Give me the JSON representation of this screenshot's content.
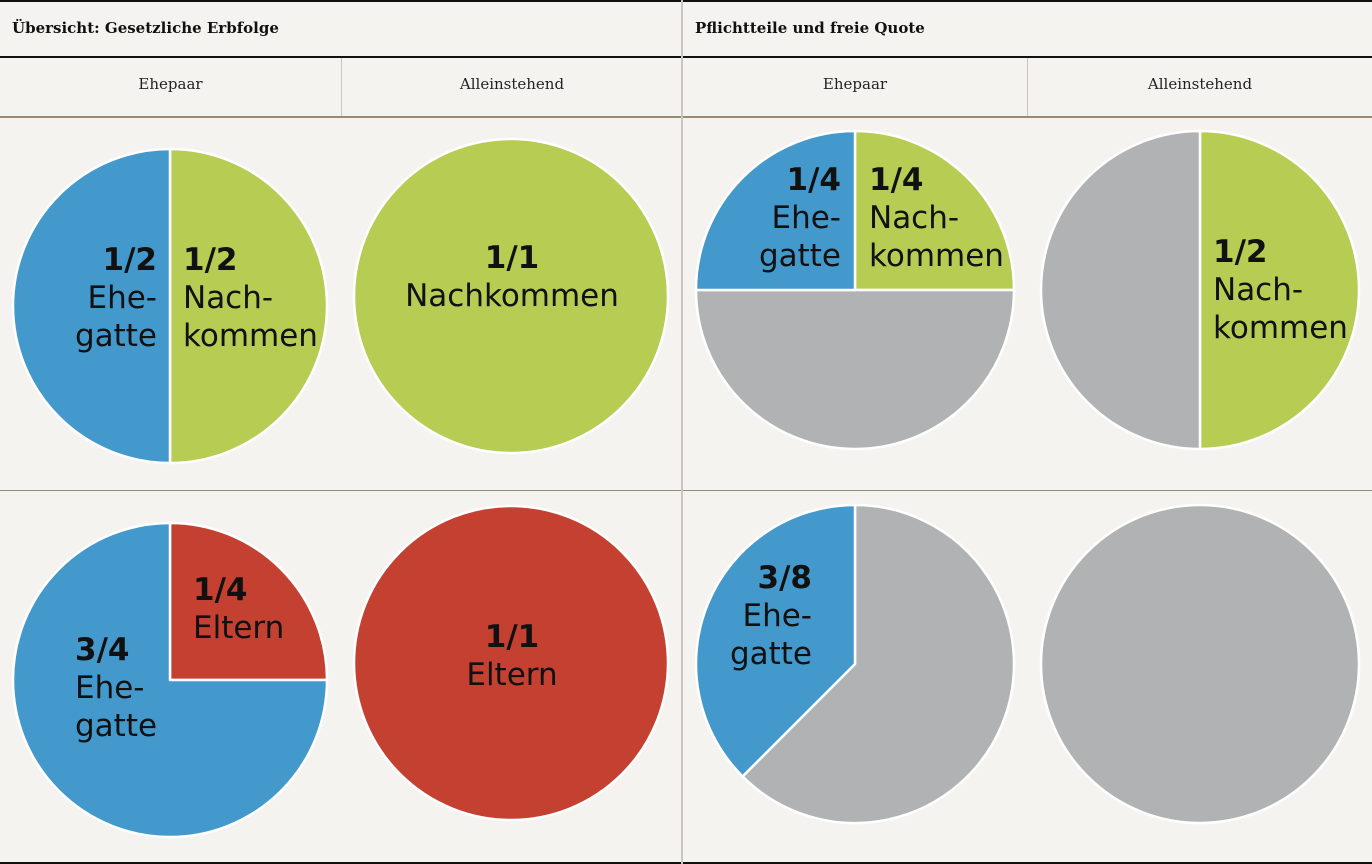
{
  "sections": [
    {
      "title": "Übersicht: Gesetzliche Erbfolge",
      "columns": [
        "Ehepaar",
        "Alleinstehend"
      ]
    },
    {
      "title": "Pflichtteile und freie Quote",
      "columns": [
        "Ehepaar",
        "Alleinstehend"
      ]
    }
  ],
  "colors": {
    "ehegatte": "#4499cc",
    "nachkommen": "#b6cc52",
    "eltern": "#c44132",
    "frei": "#b1b2b4"
  },
  "chart_data": [
    {
      "type": "pie",
      "section": "Übersicht: Gesetzliche Erbfolge",
      "column": "Ehepaar",
      "slices": [
        {
          "share": 0.5,
          "color_key": "nachkommen",
          "labels": [
            "1/2",
            "Nach-",
            "kommen"
          ]
        },
        {
          "share": 0.5,
          "color_key": "ehegatte",
          "labels": [
            "1/2",
            "Ehe-",
            "gatte"
          ]
        }
      ]
    },
    {
      "type": "pie",
      "section": "Übersicht: Gesetzliche Erbfolge",
      "column": "Alleinstehend",
      "slices": [
        {
          "share": 1.0,
          "color_key": "nachkommen",
          "labels": [
            "1/1",
            "Nachkommen"
          ]
        }
      ]
    },
    {
      "type": "pie",
      "section": "Pflichtteile und freie Quote",
      "column": "Ehepaar",
      "slices": [
        {
          "share": 0.25,
          "color_key": "nachkommen",
          "labels": [
            "1/4",
            "Nach-",
            "kommen"
          ]
        },
        {
          "share": 0.5,
          "color_key": "frei",
          "labels": []
        },
        {
          "share": 0.25,
          "color_key": "ehegatte",
          "labels": [
            "1/4",
            "Ehe-",
            "gatte"
          ]
        }
      ]
    },
    {
      "type": "pie",
      "section": "Pflichtteile und freie Quote",
      "column": "Alleinstehend",
      "slices": [
        {
          "share": 0.5,
          "color_key": "nachkommen",
          "labels": [
            "1/2",
            "Nach-",
            "kommen"
          ]
        },
        {
          "share": 0.5,
          "color_key": "frei",
          "labels": []
        }
      ]
    },
    {
      "type": "pie",
      "section": "Übersicht: Gesetzliche Erbfolge",
      "column": "Ehepaar",
      "slices": [
        {
          "share": 0.25,
          "color_key": "eltern",
          "labels": [
            "1/4",
            "Eltern"
          ]
        },
        {
          "share": 0.75,
          "color_key": "ehegatte",
          "labels": [
            "3/4",
            "Ehe-",
            "gatte"
          ]
        }
      ]
    },
    {
      "type": "pie",
      "section": "Übersicht: Gesetzliche Erbfolge",
      "column": "Alleinstehend",
      "slices": [
        {
          "share": 1.0,
          "color_key": "eltern",
          "labels": [
            "1/1",
            "Eltern"
          ]
        }
      ]
    },
    {
      "type": "pie",
      "section": "Pflichtteile und freie Quote",
      "column": "Ehepaar",
      "slices": [
        {
          "share": 0.625,
          "color_key": "frei",
          "labels": []
        },
        {
          "share": 0.375,
          "color_key": "ehegatte",
          "labels": [
            "3/8",
            "Ehe-",
            "gatte"
          ]
        }
      ]
    },
    {
      "type": "pie",
      "section": "Pflichtteile und freie Quote",
      "column": "Alleinstehend",
      "slices": [
        {
          "share": 1.0,
          "color_key": "frei",
          "labels": []
        }
      ]
    }
  ]
}
